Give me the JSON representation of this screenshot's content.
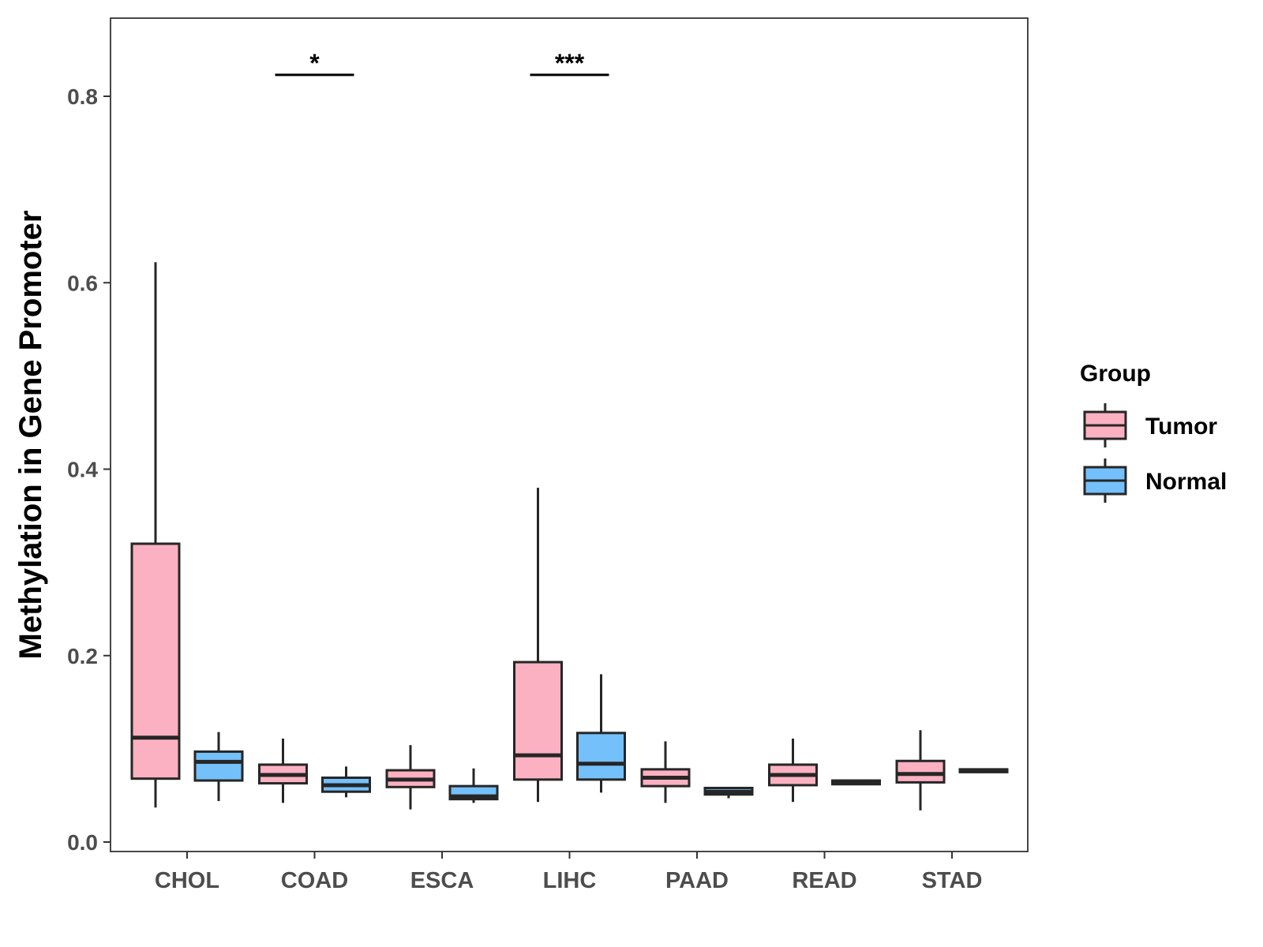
{
  "chart_data": {
    "type": "boxplot",
    "title": "",
    "xlabel": "",
    "ylabel": "Methylation in Gene Promoter",
    "ylim": [
      -0.01,
      0.88
    ],
    "yticks": [
      0.0,
      0.2,
      0.4,
      0.6,
      0.8
    ],
    "ytick_labels": [
      "0.0",
      "0.2",
      "0.4",
      "0.6",
      "0.8"
    ],
    "categories": [
      "CHOL",
      "COAD",
      "ESCA",
      "LIHC",
      "PAAD",
      "READ",
      "STAD"
    ],
    "grid": false,
    "legend": {
      "title": "Group",
      "placement": "right",
      "entries": [
        {
          "name": "Tumor",
          "color": "#FBB1C1"
        },
        {
          "name": "Normal",
          "color": "#74C0FA"
        }
      ]
    },
    "series": [
      {
        "name": "Tumor",
        "color": "#FBB1C1",
        "boxes": [
          {
            "category": "CHOL",
            "whisker_low": 0.037,
            "q1": 0.068,
            "median": 0.112,
            "q3": 0.32,
            "whisker_high": 0.622
          },
          {
            "category": "COAD",
            "whisker_low": 0.042,
            "q1": 0.063,
            "median": 0.072,
            "q3": 0.083,
            "whisker_high": 0.111
          },
          {
            "category": "ESCA",
            "whisker_low": 0.035,
            "q1": 0.059,
            "median": 0.067,
            "q3": 0.077,
            "whisker_high": 0.104
          },
          {
            "category": "LIHC",
            "whisker_low": 0.043,
            "q1": 0.067,
            "median": 0.093,
            "q3": 0.193,
            "whisker_high": 0.38
          },
          {
            "category": "PAAD",
            "whisker_low": 0.042,
            "q1": 0.06,
            "median": 0.069,
            "q3": 0.078,
            "whisker_high": 0.108
          },
          {
            "category": "READ",
            "whisker_low": 0.043,
            "q1": 0.061,
            "median": 0.072,
            "q3": 0.083,
            "whisker_high": 0.111
          },
          {
            "category": "STAD",
            "whisker_low": 0.034,
            "q1": 0.064,
            "median": 0.073,
            "q3": 0.087,
            "whisker_high": 0.12
          }
        ]
      },
      {
        "name": "Normal",
        "color": "#74C0FA",
        "boxes": [
          {
            "category": "CHOL",
            "whisker_low": 0.044,
            "q1": 0.066,
            "median": 0.086,
            "q3": 0.097,
            "whisker_high": 0.118
          },
          {
            "category": "COAD",
            "whisker_low": 0.048,
            "q1": 0.054,
            "median": 0.061,
            "q3": 0.069,
            "whisker_high": 0.081
          },
          {
            "category": "ESCA",
            "whisker_low": 0.042,
            "q1": 0.046,
            "median": 0.049,
            "q3": 0.06,
            "whisker_high": 0.079
          },
          {
            "category": "LIHC",
            "whisker_low": 0.053,
            "q1": 0.067,
            "median": 0.084,
            "q3": 0.117,
            "whisker_high": 0.18
          },
          {
            "category": "PAAD",
            "whisker_low": 0.047,
            "q1": 0.051,
            "median": 0.054,
            "q3": 0.058,
            "whisker_high": 0.059
          },
          {
            "category": "READ",
            "whisker_low": 0.061,
            "q1": 0.062,
            "median": 0.064,
            "q3": 0.066,
            "whisker_high": 0.067
          },
          {
            "category": "STAD",
            "whisker_low": 0.074,
            "q1": 0.075,
            "median": 0.077,
            "q3": 0.078,
            "whisker_high": 0.079
          }
        ]
      }
    ],
    "annotations": [
      {
        "category": "COAD",
        "label": "*",
        "y": 0.823
      },
      {
        "category": "LIHC",
        "label": "***",
        "y": 0.823
      }
    ]
  }
}
